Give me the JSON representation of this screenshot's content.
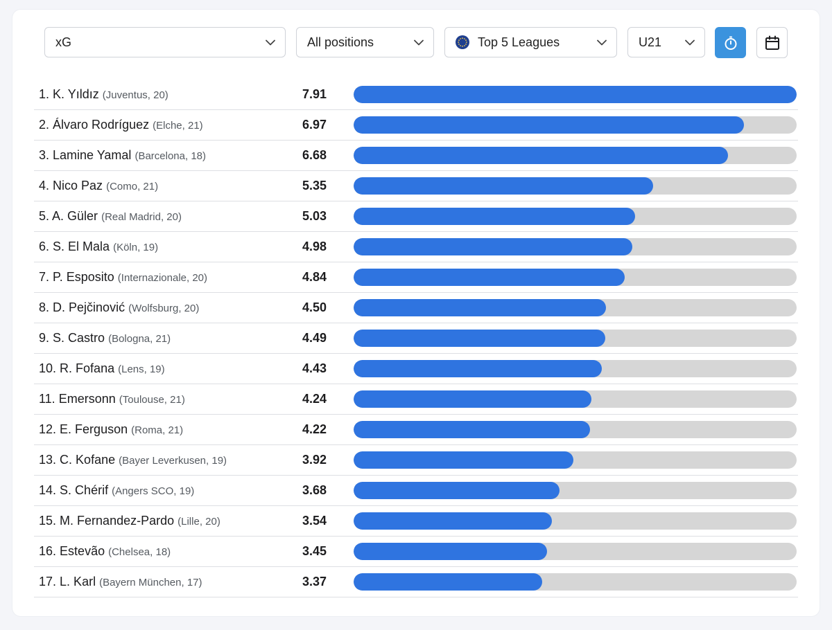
{
  "filters": {
    "metric": "xG",
    "position": "All positions",
    "league": "Top 5 Leagues",
    "age": "U21"
  },
  "icons": {
    "metric_chevron": "chevron-down-icon",
    "position_chevron": "chevron-down-icon",
    "league_flag": "eu-flag-icon",
    "league_chevron": "chevron-down-icon",
    "age_chevron": "chevron-down-icon",
    "per90_toggle": "stopwatch-icon",
    "date_range": "calendar-icon"
  },
  "colors": {
    "bar_fill": "#2f74e0",
    "bar_track": "#d6d6d6",
    "active_button": "#3b93de"
  },
  "chart_data": {
    "type": "bar",
    "orientation": "horizontal",
    "ylim": [
      0,
      7.91
    ],
    "rows": [
      {
        "rank": "1.",
        "name": "K. Yıldız",
        "meta": "(Juventus, 20)",
        "value": 7.91,
        "label": "7.91"
      },
      {
        "rank": "2.",
        "name": "Álvaro Rodríguez",
        "meta": "(Elche, 21)",
        "value": 6.97,
        "label": "6.97"
      },
      {
        "rank": "3.",
        "name": "Lamine Yamal",
        "meta": "(Barcelona, 18)",
        "value": 6.68,
        "label": "6.68"
      },
      {
        "rank": "4.",
        "name": "Nico Paz",
        "meta": "(Como, 21)",
        "value": 5.35,
        "label": "5.35"
      },
      {
        "rank": "5.",
        "name": "A. Güler",
        "meta": "(Real Madrid, 20)",
        "value": 5.03,
        "label": "5.03"
      },
      {
        "rank": "6.",
        "name": "S. El Mala",
        "meta": "(Köln, 19)",
        "value": 4.98,
        "label": "4.98"
      },
      {
        "rank": "7.",
        "name": "P. Esposito",
        "meta": "(Internazionale, 20)",
        "value": 4.84,
        "label": "4.84"
      },
      {
        "rank": "8.",
        "name": "D. Pejčinović",
        "meta": "(Wolfsburg, 20)",
        "value": 4.5,
        "label": "4.50"
      },
      {
        "rank": "9.",
        "name": "S. Castro",
        "meta": "(Bologna, 21)",
        "value": 4.49,
        "label": "4.49"
      },
      {
        "rank": "10.",
        "name": "R. Fofana",
        "meta": "(Lens, 19)",
        "value": 4.43,
        "label": "4.43"
      },
      {
        "rank": "11.",
        "name": "Emersonn",
        "meta": "(Toulouse, 21)",
        "value": 4.24,
        "label": "4.24"
      },
      {
        "rank": "12.",
        "name": "E. Ferguson",
        "meta": "(Roma, 21)",
        "value": 4.22,
        "label": "4.22"
      },
      {
        "rank": "13.",
        "name": "C. Kofane",
        "meta": "(Bayer Leverkusen, 19)",
        "value": 3.92,
        "label": "3.92"
      },
      {
        "rank": "14.",
        "name": "S. Chérif",
        "meta": "(Angers SCO, 19)",
        "value": 3.68,
        "label": "3.68"
      },
      {
        "rank": "15.",
        "name": "M. Fernandez-Pardo",
        "meta": "(Lille, 20)",
        "value": 3.54,
        "label": "3.54"
      },
      {
        "rank": "16.",
        "name": "Estevão",
        "meta": "(Chelsea, 18)",
        "value": 3.45,
        "label": "3.45"
      },
      {
        "rank": "17.",
        "name": "L. Karl",
        "meta": "(Bayern München, 17)",
        "value": 3.37,
        "label": "3.37"
      }
    ]
  }
}
